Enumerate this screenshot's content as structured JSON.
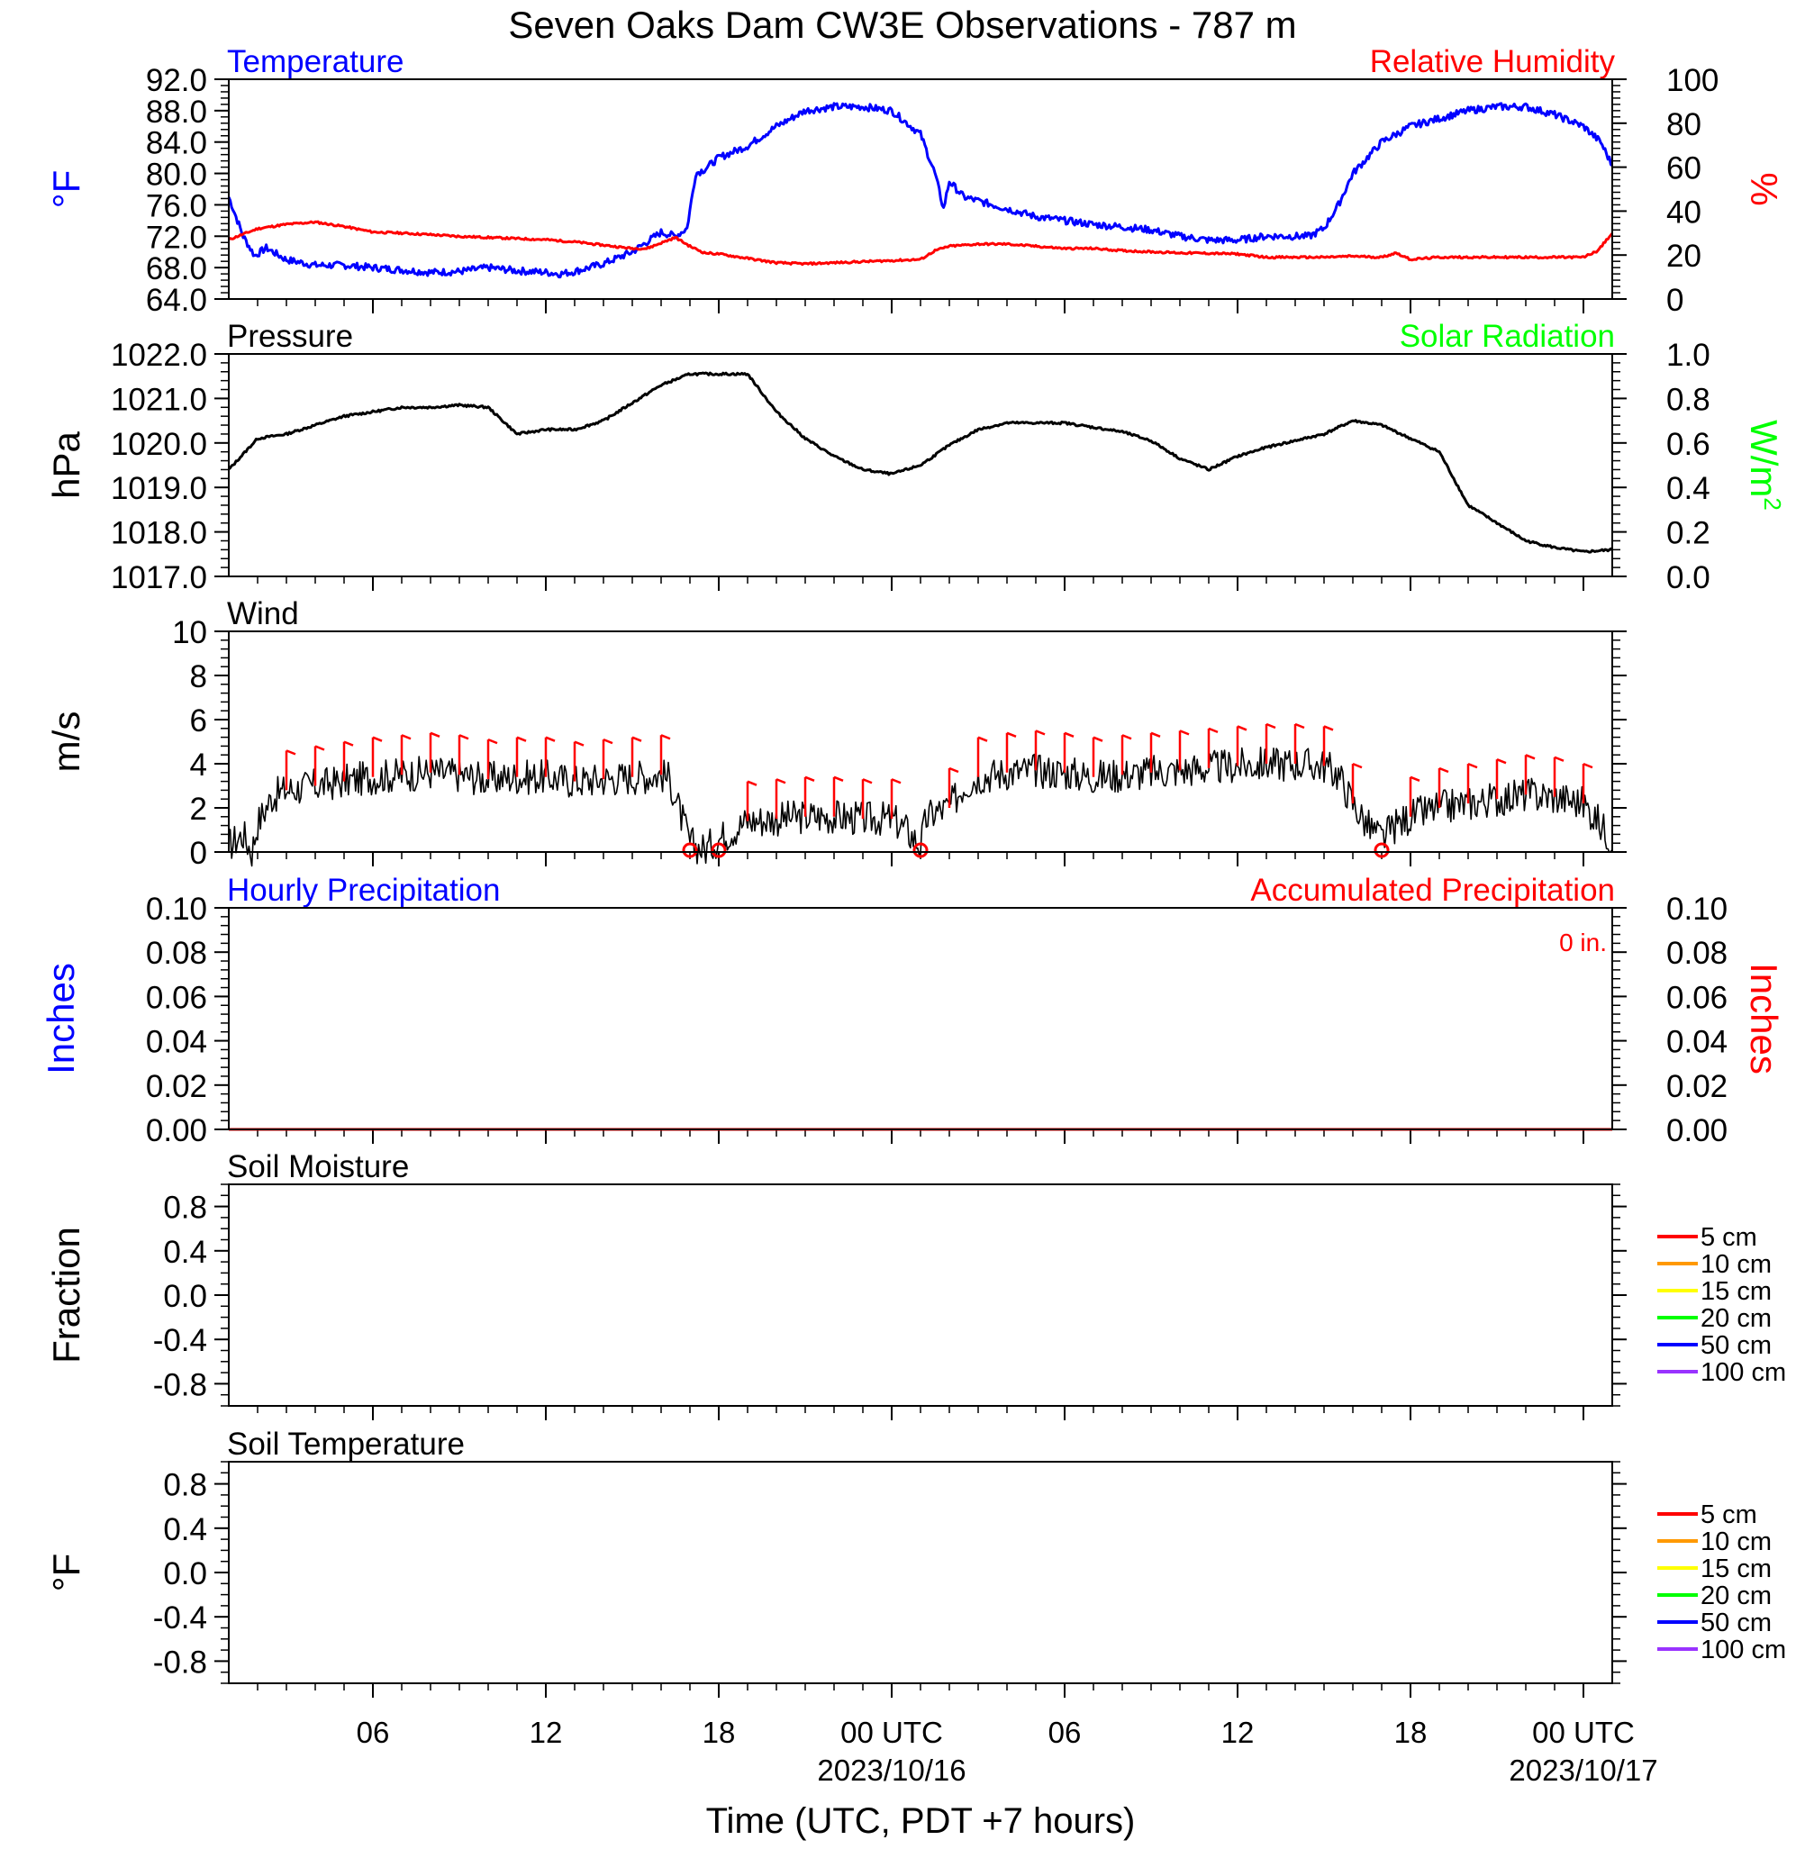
{
  "title": "Seven Oaks Dam CW3E Observations - 787 m",
  "x_axis": {
    "label": "Time (UTC, PDT +7 hours)",
    "range_hours": [
      0,
      48
    ],
    "major_ticks": [
      {
        "hour": 5,
        "label": "06",
        "date": ""
      },
      {
        "hour": 11,
        "label": "12",
        "date": ""
      },
      {
        "hour": 17,
        "label": "18",
        "date": ""
      },
      {
        "hour": 23,
        "label": "00 UTC",
        "date": "2023/10/16"
      },
      {
        "hour": 29,
        "label": "06",
        "date": ""
      },
      {
        "hour": 35,
        "label": "12",
        "date": ""
      },
      {
        "hour": 41,
        "label": "18",
        "date": ""
      },
      {
        "hour": 47,
        "label": "00 UTC",
        "date": "2023/10/17"
      }
    ]
  },
  "colors": {
    "temperature": "#0000ff",
    "humidity": "#ff0000",
    "pressure": "#000000",
    "solar": "#00ff00",
    "wind": "#000000",
    "barb": "#ff0000",
    "hourly_precip": "#0000ff",
    "accum_precip": "#ff0000"
  },
  "panels": {
    "temperature": {
      "left_title": "Temperature",
      "right_title": "Relative Humidity",
      "left_unit": "°F",
      "right_unit": "%",
      "left_ticks": [
        "92.0",
        "88.0",
        "84.0",
        "80.0",
        "76.0",
        "72.0",
        "68.0",
        "64.0"
      ],
      "right_ticks": [
        "100",
        "80",
        "60",
        "40",
        "20",
        "0"
      ]
    },
    "pressure": {
      "left_title": "Pressure",
      "right_title": "Solar Radiation",
      "left_unit": "hPa",
      "right_unit": "W/m",
      "right_unit_sup": "2",
      "left_ticks": [
        "1022.0",
        "1021.0",
        "1020.0",
        "1019.0",
        "1018.0",
        "1017.0"
      ],
      "right_ticks": [
        "1.0",
        "0.8",
        "0.6",
        "0.4",
        "0.2",
        "0.0"
      ]
    },
    "wind": {
      "left_title": "Wind",
      "left_unit": "m/s",
      "left_ticks": [
        "10",
        "8",
        "6",
        "4",
        "2",
        "0"
      ]
    },
    "precip": {
      "left_title": "Hourly Precipitation",
      "right_title": "Accumulated Precipitation",
      "total_label": "0 in.",
      "left_unit": "Inches",
      "right_unit": "Inches",
      "left_ticks": [
        "0.10",
        "0.08",
        "0.06",
        "0.04",
        "0.02",
        "0.00"
      ],
      "right_ticks": [
        "0.10",
        "0.08",
        "0.06",
        "0.04",
        "0.02",
        "0.00"
      ]
    },
    "soil_moisture": {
      "left_title": "Soil Moisture",
      "left_unit": "Fraction",
      "left_ticks": [
        "0.8",
        "0.4",
        "0.0",
        "-0.4",
        "-0.8"
      ]
    },
    "soil_temperature": {
      "left_title": "Soil Temperature",
      "left_unit": "°F",
      "left_ticks": [
        "0.8",
        "0.4",
        "0.0",
        "-0.4",
        "-0.8"
      ]
    }
  },
  "soil_legend": [
    {
      "label": "5 cm",
      "color": "#ff0000"
    },
    {
      "label": "10 cm",
      "color": "#ff9900"
    },
    {
      "label": "15 cm",
      "color": "#ffff00"
    },
    {
      "label": "20 cm",
      "color": "#00ff00"
    },
    {
      "label": "50 cm",
      "color": "#0000ff"
    },
    {
      "label": "100 cm",
      "color": "#9933ff"
    }
  ],
  "chart_data": [
    {
      "type": "line",
      "title": "Temperature",
      "x_unit": "hours since 2023/10/15 01 UTC",
      "ylabel": "°F",
      "ylim": [
        64,
        92
      ],
      "series": [
        {
          "name": "Temperature",
          "x": [
            0,
            0.5,
            0.9,
            1.3,
            2,
            3,
            4,
            5,
            6,
            7,
            8,
            9,
            10,
            11,
            11.5,
            12,
            13,
            14,
            15,
            15.5,
            15.9,
            16.2,
            16.5,
            17,
            18,
            19,
            20,
            21,
            22,
            23,
            24,
            24.5,
            24.8,
            25,
            25.5,
            26,
            27,
            28,
            29,
            30,
            31,
            32,
            33,
            34,
            35,
            36,
            37,
            37.5,
            38,
            38.5,
            39,
            40,
            41,
            42,
            43,
            44,
            45,
            46,
            47,
            47.6,
            48
          ],
          "y": [
            77,
            72,
            69.5,
            70.5,
            69,
            68.3,
            68.3,
            68,
            67.7,
            67.4,
            67.5,
            68,
            67.6,
            67.4,
            67.2,
            67.5,
            68.5,
            70,
            72.5,
            72,
            73,
            80,
            80.5,
            82,
            83.5,
            86,
            88,
            88.5,
            88.5,
            88,
            85,
            80,
            75.5,
            79,
            77,
            76.5,
            75.5,
            74.5,
            74,
            73.5,
            73.2,
            72.8,
            72,
            71.5,
            71.5,
            72,
            72,
            72,
            73,
            76,
            80,
            84,
            86,
            87,
            88,
            88.5,
            88.5,
            87.5,
            86,
            84,
            81
          ]
        },
        {
          "name": "Relative Humidity",
          "x": [
            0,
            1,
            2,
            3,
            4,
            5,
            6,
            7,
            8,
            9,
            10,
            11,
            12,
            13,
            14,
            14.5,
            15.5,
            16,
            16.5,
            17,
            18,
            19,
            20,
            21,
            22,
            23,
            24,
            24.5,
            25,
            26,
            27,
            28,
            29,
            30,
            31,
            32,
            33,
            34,
            35,
            36,
            37,
            38,
            39,
            40,
            40.5,
            41,
            42,
            43,
            44,
            45,
            46,
            47,
            47.5,
            48
          ],
          "y": [
            27,
            32,
            34,
            35,
            33,
            30.5,
            30,
            29.3,
            28.5,
            28,
            27.5,
            27,
            26,
            24.5,
            23,
            23,
            28,
            24,
            21,
            20.5,
            18.5,
            16.5,
            16,
            16.5,
            17,
            17.5,
            18,
            22,
            24,
            25,
            25,
            24,
            23,
            23,
            22,
            21.5,
            21,
            20.8,
            20.5,
            19,
            19,
            19,
            19.5,
            19,
            21,
            18,
            19,
            19,
            19,
            19,
            19,
            19,
            22,
            30
          ]
        }
      ]
    },
    {
      "type": "line",
      "title": "Pressure",
      "ylabel": "hPa",
      "ylim": [
        1017,
        1022
      ],
      "series": [
        {
          "name": "Pressure",
          "x": [
            0,
            1,
            2,
            3,
            4,
            5,
            6,
            7,
            8,
            9,
            10,
            11,
            12,
            13,
            14,
            15,
            16,
            17,
            18,
            19,
            20,
            21,
            22,
            23,
            24,
            25,
            26,
            27,
            28,
            29,
            30,
            31,
            32,
            33,
            34,
            35,
            36,
            37,
            38,
            39,
            40,
            41,
            42,
            43,
            44,
            45,
            46,
            47,
            48
          ],
          "y": [
            1019.4,
            1020.1,
            1020.2,
            1020.4,
            1020.6,
            1020.7,
            1020.8,
            1020.8,
            1020.85,
            1020.8,
            1020.2,
            1020.3,
            1020.3,
            1020.5,
            1020.9,
            1021.3,
            1021.55,
            1021.55,
            1021.55,
            1020.7,
            1020.1,
            1019.7,
            1019.4,
            1019.3,
            1019.5,
            1019.95,
            1020.3,
            1020.45,
            1020.45,
            1020.45,
            1020.35,
            1020.25,
            1020.05,
            1019.65,
            1019.4,
            1019.7,
            1019.9,
            1020.05,
            1020.2,
            1020.5,
            1020.4,
            1020.1,
            1019.8,
            1018.6,
            1018.2,
            1017.8,
            1017.65,
            1017.55,
            1017.6
          ]
        }
      ]
    },
    {
      "type": "line",
      "title": "Wind",
      "ylabel": "m/s",
      "ylim": [
        0,
        10
      ],
      "series": [
        {
          "name": "Wind",
          "x": [
            0,
            0.5,
            0.8,
            1,
            1.5,
            2,
            3,
            4,
            5,
            6,
            7,
            8,
            9,
            10,
            11,
            12,
            13,
            14,
            15,
            15.3,
            15.6,
            16,
            16.5,
            17,
            18,
            19,
            20,
            21,
            22,
            23,
            23.5,
            24,
            24.2,
            24.5,
            25,
            25.5,
            26,
            27,
            28,
            29,
            30,
            31,
            32,
            33,
            34,
            35,
            36,
            37,
            38,
            38.5,
            39,
            39.5,
            40,
            40.5,
            41,
            42,
            43,
            44,
            45,
            46,
            47,
            47.5,
            48
          ],
          "y": [
            0.3,
            0.8,
            0,
            1.3,
            2.5,
            2.8,
            3,
            3.2,
            3.4,
            3.5,
            3.6,
            3.5,
            3.3,
            3.4,
            3.4,
            3.2,
            3.3,
            3.4,
            3.5,
            3.3,
            2,
            0.4,
            0.1,
            0.6,
            1.4,
            1.5,
            1.6,
            1.6,
            1.5,
            1.5,
            1,
            0.3,
            1.5,
            1.8,
            2,
            3,
            3.4,
            3.6,
            3.7,
            3.6,
            3.4,
            3.5,
            3.6,
            3.7,
            3.8,
            3.9,
            4,
            4,
            3.9,
            3.5,
            2.2,
            1.2,
            0.6,
            1.2,
            1.6,
            2,
            2.2,
            2.4,
            2.6,
            2.5,
            2.2,
            1.4,
            0.5
          ]
        }
      ]
    },
    {
      "type": "line",
      "title": "Hourly Precipitation",
      "ylabel": "Inches",
      "ylim": [
        0,
        0.1
      ],
      "series": [
        {
          "name": "Hourly Precipitation",
          "x": [
            0,
            48
          ],
          "y": [
            0,
            0
          ]
        },
        {
          "name": "Accumulated Precipitation",
          "x": [
            0,
            48
          ],
          "y": [
            0,
            0
          ]
        }
      ]
    },
    {
      "type": "line",
      "title": "Soil Moisture",
      "ylabel": "Fraction",
      "ylim": [
        -1,
        1
      ],
      "series": []
    },
    {
      "type": "line",
      "title": "Soil Temperature",
      "ylabel": "°F",
      "ylim": [
        -1,
        1
      ],
      "series": []
    }
  ]
}
